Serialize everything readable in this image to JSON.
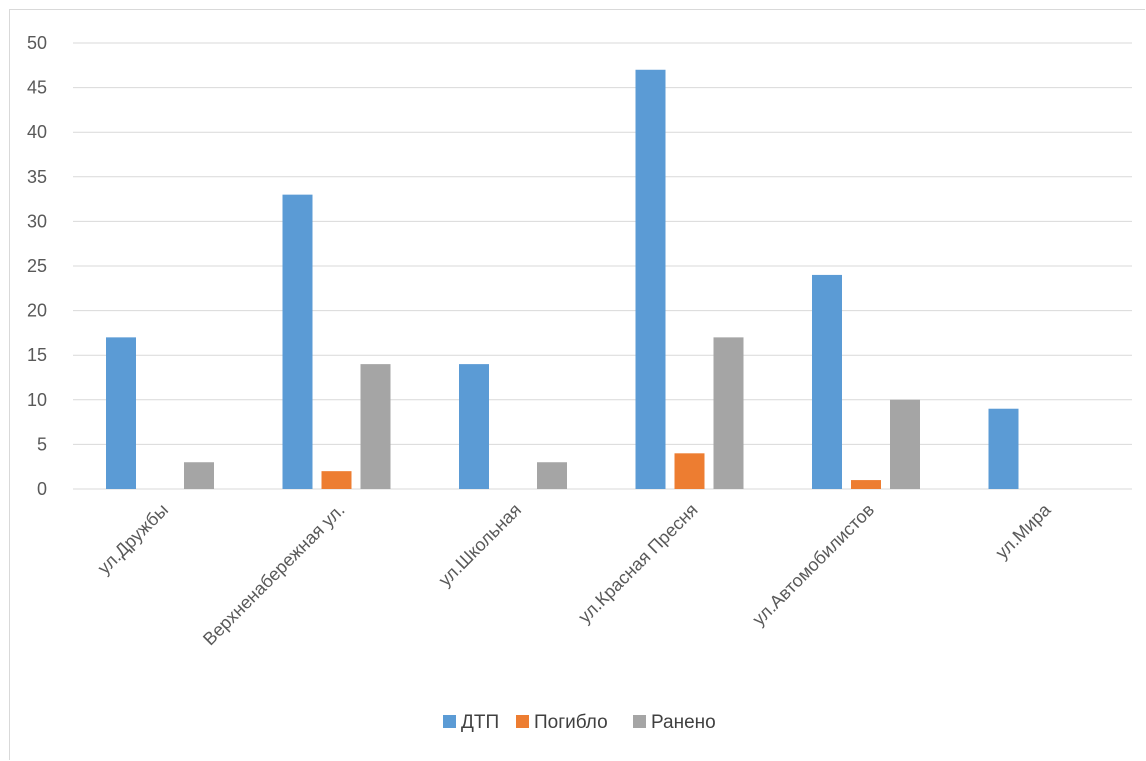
{
  "chart_data": {
    "type": "bar",
    "title": "",
    "xlabel": "",
    "ylabel": "",
    "categories": [
      "ул.Дружбы",
      "Верхненабережная ул.",
      "ул.Школьная",
      "ул.Красная Пресня",
      "ул.Автомобилистов",
      "ул.Мира"
    ],
    "series": [
      {
        "name": "ДТП",
        "color": "#5b9bd5",
        "values": [
          17,
          33,
          14,
          47,
          24,
          9
        ]
      },
      {
        "name": "Погибло",
        "color": "#ed7d31",
        "values": [
          0,
          2,
          0,
          4,
          1,
          0
        ]
      },
      {
        "name": "Ранено",
        "color": "#a5a5a5",
        "values": [
          3,
          14,
          3,
          17,
          10,
          0
        ]
      }
    ],
    "ylim": [
      0,
      50
    ],
    "yticks": [
      0,
      5,
      10,
      15,
      20,
      25,
      30,
      35,
      40,
      45,
      50
    ],
    "grid": true,
    "legend_position": "bottom"
  }
}
